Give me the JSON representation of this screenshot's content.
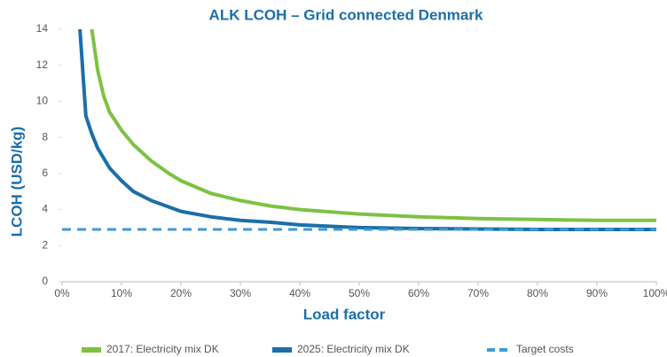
{
  "chart_data": {
    "type": "line",
    "title": "ALK LCOH – Grid connected Denmark",
    "xlabel": "Load factor",
    "ylabel": "LCOH (USD/kg)",
    "xlim": [
      0,
      100
    ],
    "xticks": [
      {
        "value": 0,
        "label": "0%"
      },
      {
        "value": 10,
        "label": "10%"
      },
      {
        "value": 20,
        "label": "20%"
      },
      {
        "value": 30,
        "label": "30%"
      },
      {
        "value": 40,
        "label": "40%"
      },
      {
        "value": 50,
        "label": "50%"
      },
      {
        "value": 60,
        "label": "60%"
      },
      {
        "value": 70,
        "label": "70%"
      },
      {
        "value": 80,
        "label": "80%"
      },
      {
        "value": 90,
        "label": "90%"
      },
      {
        "value": 100,
        "label": "100%"
      }
    ],
    "ylim": [
      0,
      14
    ],
    "yticks": [
      0,
      2,
      4,
      6,
      8,
      10,
      12,
      14
    ],
    "grid": false,
    "legend": "bottom",
    "series": [
      {
        "name": "2017: Electricity mix DK",
        "color": "#7dc243",
        "dash": false,
        "x": [
          5,
          6,
          7,
          8,
          10,
          12,
          15,
          18,
          20,
          25,
          30,
          35,
          40,
          50,
          60,
          70,
          80,
          90,
          100
        ],
        "values": [
          14,
          11.7,
          10.3,
          9.4,
          8.4,
          7.6,
          6.7,
          6.0,
          5.6,
          4.9,
          4.5,
          4.2,
          4.0,
          3.75,
          3.6,
          3.5,
          3.45,
          3.4,
          3.4
        ]
      },
      {
        "name": "2025: Electricity mix DK",
        "color": "#1b6fa9",
        "dash": false,
        "x": [
          3,
          4,
          5,
          6,
          8,
          10,
          12,
          15,
          20,
          25,
          30,
          35,
          40,
          50,
          60,
          70,
          80,
          90,
          100
        ],
        "values": [
          14,
          9.2,
          8.2,
          7.4,
          6.3,
          5.6,
          5.0,
          4.5,
          3.9,
          3.6,
          3.4,
          3.3,
          3.15,
          3.0,
          2.95,
          2.92,
          2.9,
          2.9,
          2.9
        ]
      },
      {
        "name": "Target costs",
        "color": "#3d9ad8",
        "dash": true,
        "x": [
          0,
          100
        ],
        "values": [
          2.9,
          2.9
        ]
      }
    ]
  }
}
